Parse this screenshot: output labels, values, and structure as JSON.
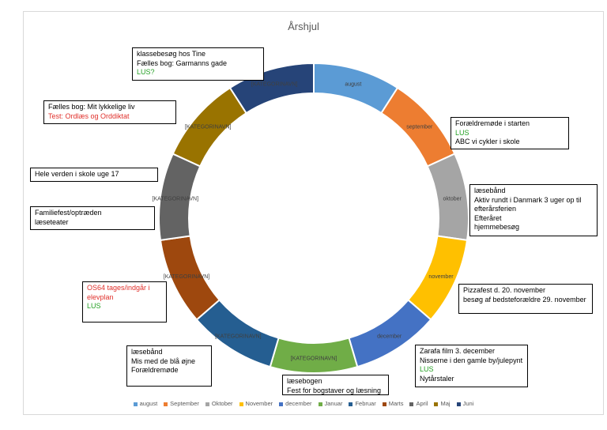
{
  "chart_data": {
    "type": "pie",
    "variant": "doughnut",
    "title": "Årshjul",
    "categories": [
      "august",
      "september",
      "oktober",
      "november",
      "december",
      "[KATEGORINAVN]",
      "[KATEGORINAVN]",
      "[KATEGORINAVN]",
      "[KATEGORINAVN]",
      "[KATEGORINAVN]",
      "[KATEGORINAVN]"
    ],
    "values": [
      1,
      1,
      1,
      1,
      1,
      1,
      1,
      1,
      1,
      1,
      1
    ],
    "colors": [
      "#5b9bd5",
      "#ed7d31",
      "#a5a5a5",
      "#ffc000",
      "#4472c4",
      "#70ad47",
      "#255e91",
      "#9e480e",
      "#636363",
      "#997300",
      "#264478"
    ],
    "legend": {
      "position": "bottom",
      "entries": [
        "august",
        "September",
        "Oktober",
        "November",
        "december",
        "Januar",
        "Februar",
        "Marts",
        "April",
        "Maj",
        "Juni"
      ]
    }
  },
  "notes": [
    {
      "id": "klassebesog",
      "lines": [
        {
          "text": "klassebesøg hos Tine",
          "color": "black"
        },
        {
          "text": "Fælles bog: Garmanns gade",
          "color": "black"
        },
        {
          "text": "LUS?",
          "color": "green"
        }
      ]
    },
    {
      "id": "faelles-bog",
      "lines": [
        {
          "text": "Fælles bog: Mit lykkelige liv",
          "color": "black"
        },
        {
          "text": "Test: Ordlæs og Orddiktat",
          "color": "red"
        }
      ]
    },
    {
      "id": "hele-verden",
      "lines": [
        {
          "text": "Hele verden i skole uge 17",
          "color": "black"
        }
      ]
    },
    {
      "id": "familiefest",
      "lines": [
        {
          "text": "Familiefest/optræden",
          "color": "black"
        },
        {
          "text": "læseteater",
          "color": "black"
        }
      ]
    },
    {
      "id": "os64",
      "lines": [
        {
          "text": "OS64 tages/indgår i",
          "color": "red"
        },
        {
          "text": "elevplan",
          "color": "red"
        },
        {
          "text": "LUS",
          "color": "green"
        }
      ]
    },
    {
      "id": "laesebaand-bla",
      "lines": [
        {
          "text": "læsebånd",
          "color": "black"
        },
        {
          "text": "Mis med de blå øjne",
          "color": "black"
        },
        {
          "text": "Forældremøde",
          "color": "black"
        }
      ]
    },
    {
      "id": "laesebogen",
      "lines": [
        {
          "text": "læsebogen",
          "color": "black"
        },
        {
          "text": "Fest for bogstaver og læsning",
          "color": "black"
        }
      ]
    },
    {
      "id": "zarafa",
      "lines": [
        {
          "text": "Zarafa film 3. december",
          "color": "black"
        },
        {
          "text": "Nisserne i den gamle by/julepynt",
          "color": "black"
        },
        {
          "text": "LUS",
          "color": "green"
        },
        {
          "text": "Nytårstaler",
          "color": "black"
        }
      ]
    },
    {
      "id": "pizzafest",
      "lines": [
        {
          "text": "Pizzafest d. 20. november",
          "color": "black"
        },
        {
          "text": "besøg af bedsteforældre 29. november",
          "color": "black"
        }
      ]
    },
    {
      "id": "laesebaand-aktiv",
      "lines": [
        {
          "text": "læsebånd",
          "color": "black"
        },
        {
          "text": "Aktiv rundt i Danmark 3 uger op til",
          "color": "black"
        },
        {
          "text": "efterårsferien",
          "color": "black"
        },
        {
          "text": "Efteråret",
          "color": "black"
        },
        {
          "text": "hjemmebesøg",
          "color": "black"
        }
      ]
    },
    {
      "id": "foraeldremode",
      "lines": [
        {
          "text": "Forældremøde i starten",
          "color": "black"
        },
        {
          "text": "LUS",
          "color": "green"
        },
        {
          "text": "ABC vi cykler i skole",
          "color": "black"
        }
      ]
    }
  ]
}
